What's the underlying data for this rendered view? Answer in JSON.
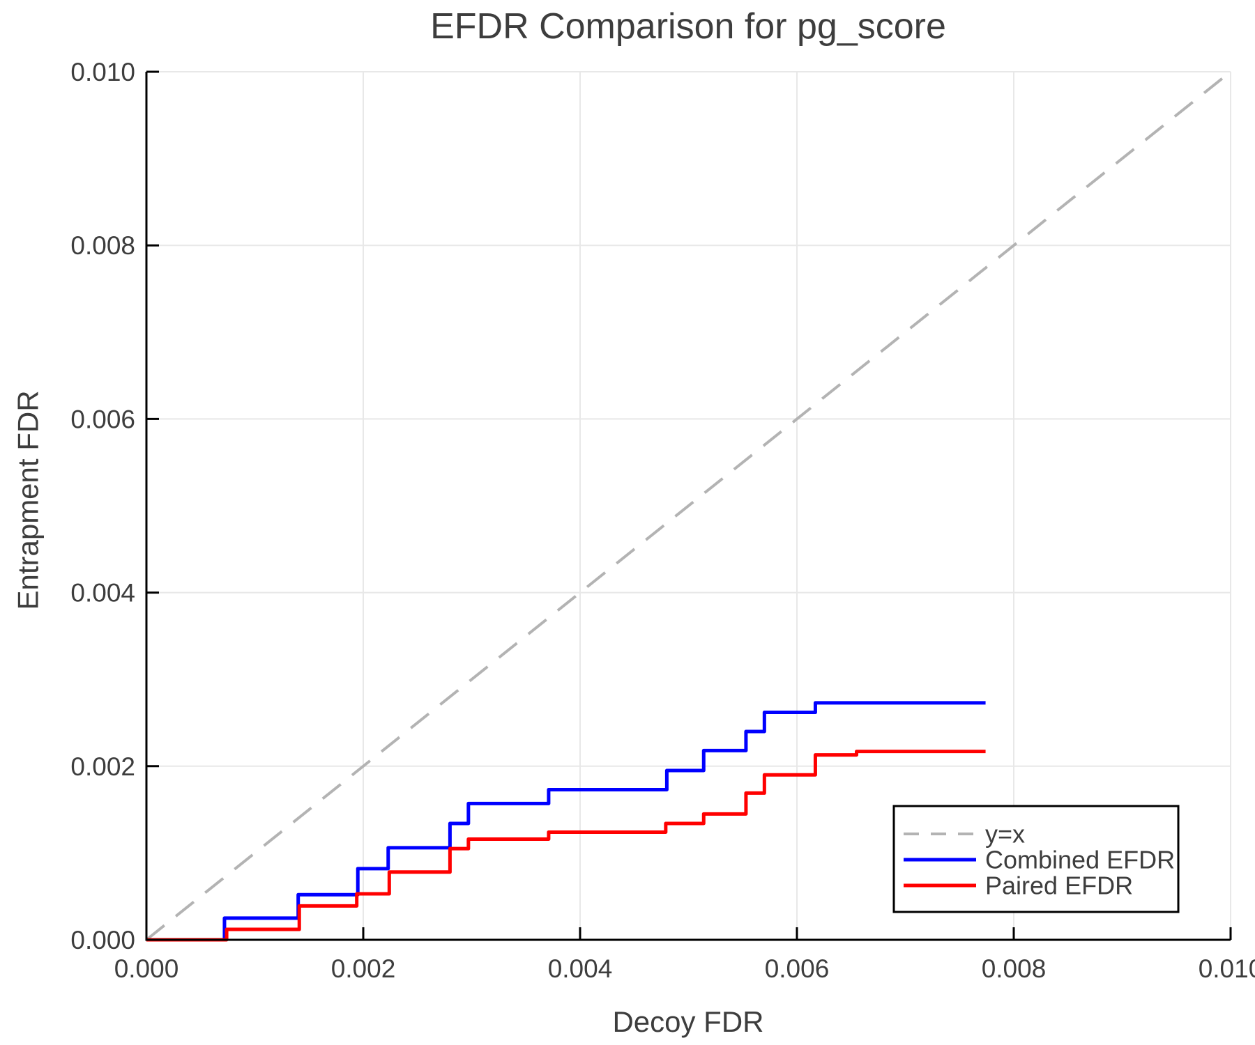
{
  "title": "EFDR Comparison for pg_score",
  "colors": {
    "background": "#ffffff",
    "grid": "#e8e8e8",
    "axis": "#000000",
    "text": "#3d3d3d",
    "diagonal": "#b3b3b3",
    "combined": "#0000ff",
    "paired": "#ff0000",
    "legend_border": "#000000"
  },
  "chart_data": {
    "type": "line",
    "title": "EFDR Comparison for pg_score",
    "xlabel": "Decoy FDR",
    "ylabel": "Entrapment FDR",
    "xlim": [
      0.0,
      0.01
    ],
    "ylim": [
      0.0,
      0.01
    ],
    "grid": true,
    "legend_position": "bottom-right",
    "xticks": [
      0.0,
      0.002,
      0.004,
      0.006,
      0.008,
      0.01
    ],
    "xtick_labels": [
      "0.000",
      "0.002",
      "0.004",
      "0.006",
      "0.008",
      "0.010"
    ],
    "yticks": [
      0.0,
      0.002,
      0.004,
      0.006,
      0.008,
      0.01
    ],
    "ytick_labels": [
      "0.000",
      "0.002",
      "0.004",
      "0.006",
      "0.008",
      "0.010"
    ],
    "series": [
      {
        "name": "y=x",
        "draw": "straight",
        "style": "dashed",
        "color": "#b3b3b3",
        "width": 4,
        "points": [
          [
            0.0,
            0.0
          ],
          [
            0.01,
            0.01
          ]
        ]
      },
      {
        "name": "Combined EFDR",
        "draw": "step",
        "style": "solid",
        "color": "#0000ff",
        "width": 5,
        "points": [
          [
            0.0,
            0.0
          ],
          [
            0.00072,
            0.00025
          ],
          [
            0.0014,
            0.00052
          ],
          [
            0.00195,
            0.00082
          ],
          [
            0.00223,
            0.00106
          ],
          [
            0.0028,
            0.00134
          ],
          [
            0.00297,
            0.00157
          ],
          [
            0.00371,
            0.00173
          ],
          [
            0.0048,
            0.00195
          ],
          [
            0.00514,
            0.00218
          ],
          [
            0.00553,
            0.0024
          ],
          [
            0.0057,
            0.00262
          ],
          [
            0.00617,
            0.00273
          ],
          [
            0.00774,
            0.00273
          ]
        ]
      },
      {
        "name": "Paired EFDR",
        "draw": "step",
        "style": "solid",
        "color": "#ff0000",
        "width": 5,
        "points": [
          [
            0.0,
            0.0
          ],
          [
            0.00074,
            0.00012
          ],
          [
            0.00141,
            0.00039
          ],
          [
            0.00194,
            0.00053
          ],
          [
            0.00224,
            0.00078
          ],
          [
            0.0028,
            0.00105
          ],
          [
            0.00297,
            0.00116
          ],
          [
            0.00371,
            0.00124
          ],
          [
            0.00479,
            0.00134
          ],
          [
            0.00514,
            0.00145
          ],
          [
            0.00553,
            0.00169
          ],
          [
            0.0057,
            0.0019
          ],
          [
            0.00617,
            0.00213
          ],
          [
            0.00655,
            0.00217
          ],
          [
            0.00774,
            0.00217
          ]
        ]
      }
    ]
  }
}
